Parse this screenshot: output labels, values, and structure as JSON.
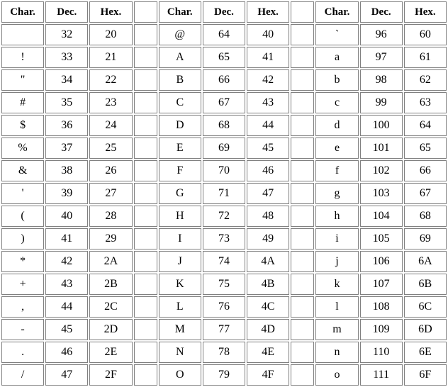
{
  "headers": [
    "Char.",
    "Dec.",
    "Hex.",
    "",
    "Char.",
    "Dec.",
    "Hex.",
    "",
    "Char.",
    "Dec.",
    "Hex."
  ],
  "rows": [
    [
      " ",
      "32",
      "20",
      "",
      "@",
      "64",
      "40",
      "",
      "`",
      "96",
      "60"
    ],
    [
      "!",
      "33",
      "21",
      "",
      "A",
      "65",
      "41",
      "",
      "a",
      "97",
      "61"
    ],
    [
      "\"",
      "34",
      "22",
      "",
      "B",
      "66",
      "42",
      "",
      "b",
      "98",
      "62"
    ],
    [
      "#",
      "35",
      "23",
      "",
      "C",
      "67",
      "43",
      "",
      "c",
      "99",
      "63"
    ],
    [
      "$",
      "36",
      "24",
      "",
      "D",
      "68",
      "44",
      "",
      "d",
      "100",
      "64"
    ],
    [
      "%",
      "37",
      "25",
      "",
      "E",
      "69",
      "45",
      "",
      "e",
      "101",
      "65"
    ],
    [
      "&",
      "38",
      "26",
      "",
      "F",
      "70",
      "46",
      "",
      "f",
      "102",
      "66"
    ],
    [
      "'",
      "39",
      "27",
      "",
      "G",
      "71",
      "47",
      "",
      "g",
      "103",
      "67"
    ],
    [
      "(",
      "40",
      "28",
      "",
      "H",
      "72",
      "48",
      "",
      "h",
      "104",
      "68"
    ],
    [
      ")",
      "41",
      "29",
      "",
      "I",
      "73",
      "49",
      "",
      "i",
      "105",
      "69"
    ],
    [
      "*",
      "42",
      "2A",
      "",
      "J",
      "74",
      "4A",
      "",
      "j",
      "106",
      "6A"
    ],
    [
      "+",
      "43",
      "2B",
      "",
      "K",
      "75",
      "4B",
      "",
      "k",
      "107",
      "6B"
    ],
    [
      ",",
      "44",
      "2C",
      "",
      "L",
      "76",
      "4C",
      "",
      "l",
      "108",
      "6C"
    ],
    [
      "-",
      "45",
      "2D",
      "",
      "M",
      "77",
      "4D",
      "",
      "m",
      "109",
      "6D"
    ],
    [
      ".",
      "46",
      "2E",
      "",
      "N",
      "78",
      "4E",
      "",
      "n",
      "110",
      "6E"
    ],
    [
      "/",
      "47",
      "2F",
      "",
      "O",
      "79",
      "4F",
      "",
      "o",
      "111",
      "6F"
    ]
  ]
}
